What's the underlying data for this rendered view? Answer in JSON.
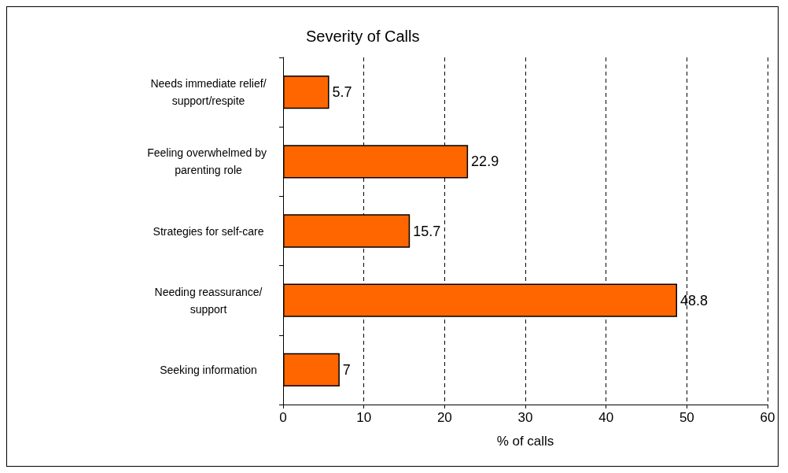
{
  "chart_data": {
    "type": "bar",
    "orientation": "horizontal",
    "title": "Severity of Calls",
    "xlabel": "% of calls",
    "categories": [
      "Needs immediate relief/support/respite",
      "Feeling overwhelmed by parenting role",
      "Strategies for self-care",
      "Needing reassurance/support",
      "Seeking information"
    ],
    "values": [
      5.7,
      22.9,
      15.7,
      48.8,
      7
    ],
    "color": "#ff6600",
    "xlim": [
      0,
      60
    ],
    "xticks": [
      0,
      10,
      20,
      30,
      40,
      50,
      60
    ],
    "grid": "x",
    "data_labels": true
  }
}
